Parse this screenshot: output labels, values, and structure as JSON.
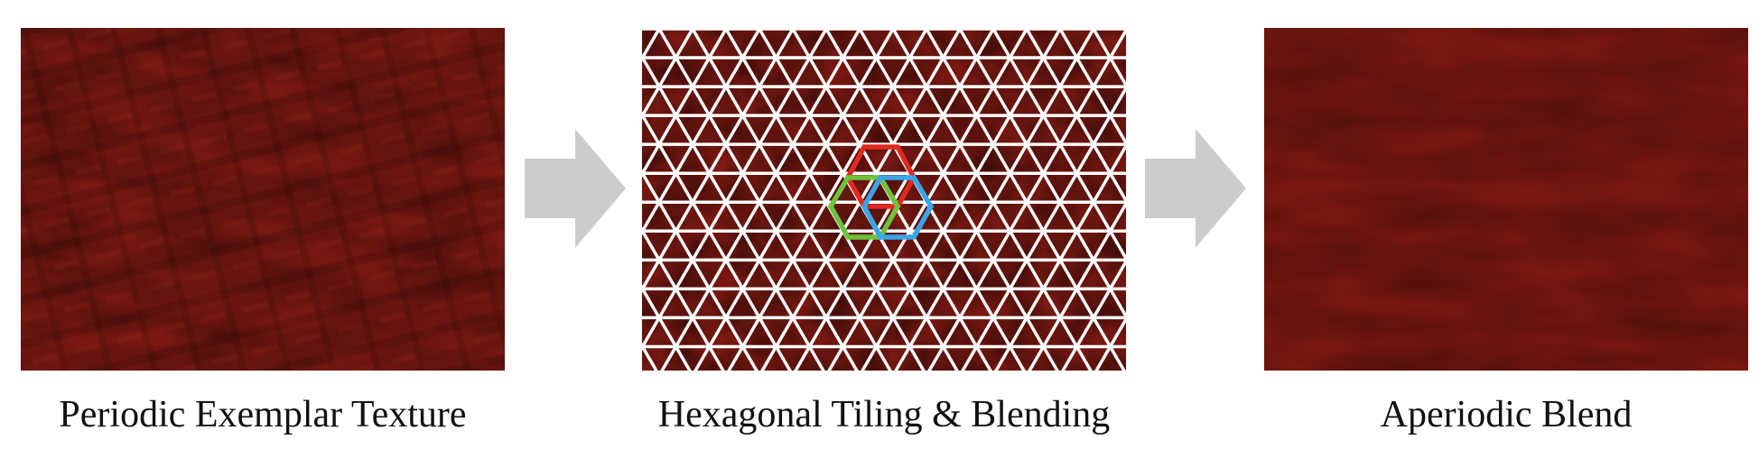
{
  "panels": [
    {
      "id": "exemplar",
      "caption": "Periodic Exemplar Texture"
    },
    {
      "id": "tiling",
      "caption": "Hexagonal Tiling & Blending"
    },
    {
      "id": "result",
      "caption": "Aperiodic Blend"
    }
  ],
  "colors": {
    "texture_base": "#8a1c14",
    "texture_dark": "#4a0c08",
    "texture_light": "#a8281c",
    "grid_lines": "#ffffff",
    "arrow_fill": "#cccccc",
    "hex_red": "#e02a1e",
    "hex_green": "#6cc43c",
    "hex_blue": "#3aa6ea"
  },
  "hexagons": [
    "red",
    "green",
    "blue"
  ]
}
